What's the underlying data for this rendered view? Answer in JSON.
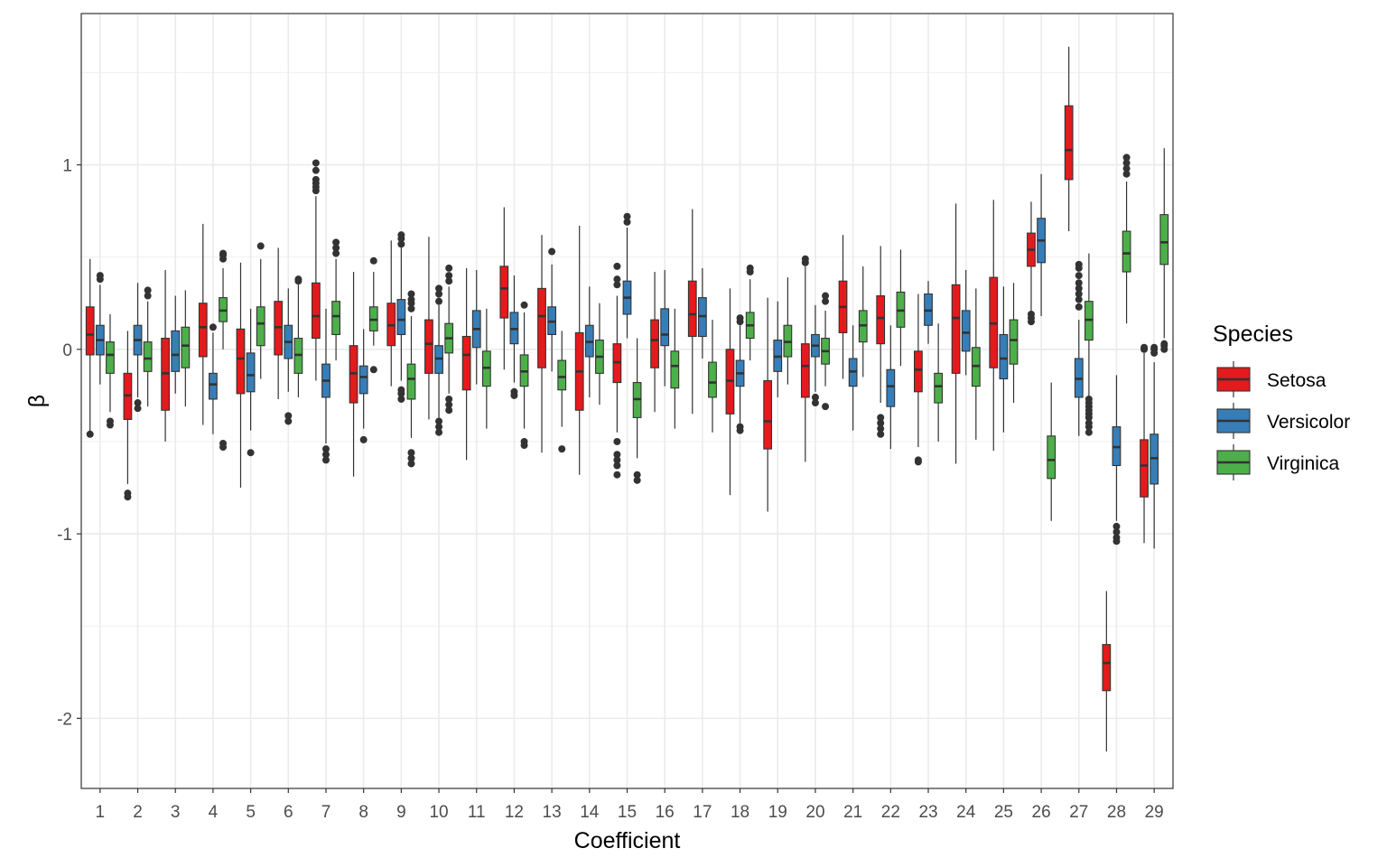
{
  "chart_data": {
    "type": "boxplot",
    "xlabel": "Coefficient",
    "ylabel": "β",
    "ylim": [
      -2.38,
      1.82
    ],
    "yticks": [
      -2,
      -1,
      0,
      1
    ],
    "categories": [
      "1",
      "2",
      "3",
      "4",
      "5",
      "6",
      "7",
      "8",
      "9",
      "10",
      "11",
      "12",
      "13",
      "14",
      "15",
      "16",
      "17",
      "18",
      "19",
      "20",
      "21",
      "22",
      "23",
      "24",
      "25",
      "26",
      "27",
      "28",
      "29"
    ],
    "grid": true,
    "legend": {
      "title": "Species",
      "position": "right",
      "entries": [
        "Setosa",
        "Versicolor",
        "Virginica"
      ]
    },
    "colors": {
      "Setosa": "#e41a1c",
      "Versicolor": "#377eb8",
      "Virginica": "#4daf4a"
    },
    "series": [
      {
        "name": "Setosa",
        "boxes": [
          {
            "wlo": -0.46,
            "q1": -0.03,
            "med": 0.08,
            "q3": 0.23,
            "whi": 0.49,
            "out": [
              -0.46
            ]
          },
          {
            "wlo": -0.73,
            "q1": -0.38,
            "med": -0.25,
            "q3": -0.13,
            "whi": 0.1,
            "out": [
              -0.78,
              -0.8
            ]
          },
          {
            "wlo": -0.5,
            "q1": -0.33,
            "med": -0.13,
            "q3": 0.06,
            "whi": 0.43,
            "out": []
          },
          {
            "wlo": -0.41,
            "q1": -0.04,
            "med": 0.12,
            "q3": 0.25,
            "whi": 0.68,
            "out": []
          },
          {
            "wlo": -0.75,
            "q1": -0.24,
            "med": -0.05,
            "q3": 0.11,
            "whi": 0.47,
            "out": []
          },
          {
            "wlo": -0.27,
            "q1": -0.03,
            "med": 0.12,
            "q3": 0.26,
            "whi": 0.55,
            "out": []
          },
          {
            "wlo": -0.17,
            "q1": 0.06,
            "med": 0.18,
            "q3": 0.36,
            "whi": 0.83,
            "out": [
              0.86,
              0.88,
              0.9,
              0.92,
              0.97,
              1.01
            ]
          },
          {
            "wlo": -0.69,
            "q1": -0.29,
            "med": -0.13,
            "q3": 0.02,
            "whi": 0.42,
            "out": []
          },
          {
            "wlo": -0.2,
            "q1": 0.02,
            "med": 0.13,
            "q3": 0.25,
            "whi": 0.59,
            "out": []
          },
          {
            "wlo": -0.38,
            "q1": -0.13,
            "med": 0.03,
            "q3": 0.16,
            "whi": 0.61,
            "out": []
          },
          {
            "wlo": -0.6,
            "q1": -0.22,
            "med": -0.03,
            "q3": 0.07,
            "whi": 0.44,
            "out": []
          },
          {
            "wlo": -0.11,
            "q1": 0.17,
            "med": 0.33,
            "q3": 0.45,
            "whi": 0.77,
            "out": []
          },
          {
            "wlo": -0.56,
            "q1": -0.1,
            "med": 0.18,
            "q3": 0.33,
            "whi": 0.62,
            "out": []
          },
          {
            "wlo": -0.68,
            "q1": -0.33,
            "med": -0.12,
            "q3": 0.09,
            "whi": 0.67,
            "out": []
          },
          {
            "wlo": -0.45,
            "q1": -0.18,
            "med": -0.07,
            "q3": 0.03,
            "whi": 0.29,
            "out": [
              0.35,
              0.38,
              0.45,
              -0.5,
              -0.57,
              -0.6,
              -0.63,
              -0.68
            ]
          },
          {
            "wlo": -0.34,
            "q1": -0.1,
            "med": 0.05,
            "q3": 0.16,
            "whi": 0.42,
            "out": []
          },
          {
            "wlo": -0.35,
            "q1": 0.07,
            "med": 0.19,
            "q3": 0.37,
            "whi": 0.76,
            "out": []
          },
          {
            "wlo": -0.79,
            "q1": -0.35,
            "med": -0.17,
            "q3": 0.0,
            "whi": 0.33,
            "out": []
          },
          {
            "wlo": -0.88,
            "q1": -0.54,
            "med": -0.39,
            "q3": -0.17,
            "whi": 0.28,
            "out": []
          },
          {
            "wlo": -0.61,
            "q1": -0.26,
            "med": -0.09,
            "q3": 0.03,
            "whi": 0.45,
            "out": [
              0.47,
              0.49
            ]
          },
          {
            "wlo": -0.16,
            "q1": 0.09,
            "med": 0.23,
            "q3": 0.37,
            "whi": 0.62,
            "out": []
          },
          {
            "wlo": -0.29,
            "q1": 0.03,
            "med": 0.17,
            "q3": 0.29,
            "whi": 0.56,
            "out": [
              -0.37,
              -0.4,
              -0.43,
              -0.46
            ]
          },
          {
            "wlo": -0.53,
            "q1": -0.23,
            "med": -0.11,
            "q3": -0.01,
            "whi": 0.3,
            "out": [
              -0.6,
              -0.61
            ]
          },
          {
            "wlo": -0.62,
            "q1": -0.13,
            "med": 0.17,
            "q3": 0.35,
            "whi": 0.79,
            "out": []
          },
          {
            "wlo": -0.55,
            "q1": -0.1,
            "med": 0.14,
            "q3": 0.39,
            "whi": 0.81,
            "out": []
          },
          {
            "wlo": 0.2,
            "q1": 0.45,
            "med": 0.54,
            "q3": 0.63,
            "whi": 0.8,
            "out": [
              0.15,
              0.17,
              0.19
            ]
          },
          {
            "wlo": 0.64,
            "q1": 0.92,
            "med": 1.08,
            "q3": 1.32,
            "whi": 1.64,
            "out": []
          },
          {
            "wlo": -2.18,
            "q1": -1.85,
            "med": -1.7,
            "q3": -1.6,
            "whi": -1.31,
            "out": []
          },
          {
            "wlo": -1.05,
            "q1": -0.8,
            "med": -0.63,
            "q3": -0.49,
            "whi": -0.02,
            "out": [
              0.0,
              0.01
            ]
          }
        ]
      },
      {
        "name": "Versicolor",
        "boxes": [
          {
            "wlo": -0.19,
            "q1": -0.03,
            "med": 0.05,
            "q3": 0.13,
            "whi": 0.35,
            "out": [
              0.38,
              0.4
            ]
          },
          {
            "wlo": -0.26,
            "q1": -0.03,
            "med": 0.05,
            "q3": 0.13,
            "whi": 0.36,
            "out": [
              -0.29,
              -0.32
            ]
          },
          {
            "wlo": -0.24,
            "q1": -0.12,
            "med": -0.03,
            "q3": 0.1,
            "whi": 0.29,
            "out": []
          },
          {
            "wlo": -0.46,
            "q1": -0.27,
            "med": -0.19,
            "q3": -0.13,
            "whi": 0.09,
            "out": [
              0.12
            ]
          },
          {
            "wlo": -0.44,
            "q1": -0.23,
            "med": -0.14,
            "q3": -0.02,
            "whi": 0.22,
            "out": [
              -0.56
            ]
          },
          {
            "wlo": -0.23,
            "q1": -0.05,
            "med": 0.04,
            "q3": 0.13,
            "whi": 0.33,
            "out": [
              -0.36,
              -0.39
            ]
          },
          {
            "wlo": -0.51,
            "q1": -0.26,
            "med": -0.17,
            "q3": -0.08,
            "whi": 0.22,
            "out": [
              -0.54,
              -0.57,
              -0.6
            ]
          },
          {
            "wlo": -0.43,
            "q1": -0.24,
            "med": -0.15,
            "q3": -0.09,
            "whi": 0.11,
            "out": [
              -0.49
            ]
          },
          {
            "wlo": -0.17,
            "q1": 0.08,
            "med": 0.16,
            "q3": 0.27,
            "whi": 0.55,
            "out": [
              0.57,
              0.6,
              0.62,
              -0.22,
              -0.24,
              -0.27
            ]
          },
          {
            "wlo": -0.37,
            "q1": -0.13,
            "med": -0.05,
            "q3": 0.02,
            "whi": 0.24,
            "out": [
              0.26,
              0.3,
              0.33,
              -0.39,
              -0.42,
              -0.45
            ]
          },
          {
            "wlo": -0.19,
            "q1": 0.01,
            "med": 0.11,
            "q3": 0.21,
            "whi": 0.43,
            "out": []
          },
          {
            "wlo": -0.18,
            "q1": 0.03,
            "med": 0.11,
            "q3": 0.2,
            "whi": 0.4,
            "out": [
              -0.23,
              -0.25
            ]
          },
          {
            "wlo": -0.12,
            "q1": 0.08,
            "med": 0.15,
            "q3": 0.23,
            "whi": 0.46,
            "out": [
              0.53
            ]
          },
          {
            "wlo": -0.26,
            "q1": -0.04,
            "med": 0.04,
            "q3": 0.13,
            "whi": 0.34,
            "out": []
          },
          {
            "wlo": 0.06,
            "q1": 0.19,
            "med": 0.28,
            "q3": 0.37,
            "whi": 0.66,
            "out": [
              0.69,
              0.72
            ]
          },
          {
            "wlo": -0.2,
            "q1": 0.02,
            "med": 0.08,
            "q3": 0.22,
            "whi": 0.43,
            "out": []
          },
          {
            "wlo": -0.05,
            "q1": 0.07,
            "med": 0.18,
            "q3": 0.28,
            "whi": 0.44,
            "out": []
          },
          {
            "wlo": -0.4,
            "q1": -0.2,
            "med": -0.13,
            "q3": -0.06,
            "whi": 0.13,
            "out": [
              0.15,
              0.17,
              -0.42,
              -0.44
            ]
          },
          {
            "wlo": -0.26,
            "q1": -0.12,
            "med": -0.04,
            "q3": 0.05,
            "whi": 0.26,
            "out": []
          },
          {
            "wlo": -0.23,
            "q1": -0.04,
            "med": 0.02,
            "q3": 0.08,
            "whi": 0.24,
            "out": [
              -0.26,
              -0.29
            ]
          },
          {
            "wlo": -0.44,
            "q1": -0.2,
            "med": -0.12,
            "q3": -0.05,
            "whi": 0.13,
            "out": []
          },
          {
            "wlo": -0.54,
            "q1": -0.31,
            "med": -0.2,
            "q3": -0.11,
            "whi": 0.13,
            "out": []
          },
          {
            "wlo": 0.03,
            "q1": 0.13,
            "med": 0.21,
            "q3": 0.3,
            "whi": 0.37,
            "out": []
          },
          {
            "wlo": -0.14,
            "q1": -0.01,
            "med": 0.09,
            "q3": 0.21,
            "whi": 0.43,
            "out": []
          },
          {
            "wlo": -0.45,
            "q1": -0.16,
            "med": -0.05,
            "q3": 0.08,
            "whi": 0.34,
            "out": []
          },
          {
            "wlo": 0.18,
            "q1": 0.47,
            "med": 0.59,
            "q3": 0.71,
            "whi": 0.95,
            "out": []
          },
          {
            "wlo": -0.47,
            "q1": -0.26,
            "med": -0.16,
            "q3": -0.05,
            "whi": 0.16,
            "out": [
              0.23,
              0.27,
              0.3,
              0.33,
              0.36,
              0.4,
              0.44,
              0.46
            ]
          },
          {
            "wlo": -0.93,
            "q1": -0.63,
            "med": -0.53,
            "q3": -0.42,
            "whi": -0.14,
            "out": [
              -0.96,
              -0.99,
              -1.02,
              -1.04
            ]
          },
          {
            "wlo": -1.08,
            "q1": -0.73,
            "med": -0.59,
            "q3": -0.46,
            "whi": -0.07,
            "out": [
              -0.02,
              0.0,
              0.01
            ]
          }
        ]
      },
      {
        "name": "Virginica",
        "boxes": [
          {
            "wlo": -0.34,
            "q1": -0.13,
            "med": -0.03,
            "q3": 0.04,
            "whi": 0.19,
            "out": [
              -0.39,
              -0.41
            ]
          },
          {
            "wlo": -0.31,
            "q1": -0.12,
            "med": -0.05,
            "q3": 0.04,
            "whi": 0.26,
            "out": [
              0.29,
              0.32
            ]
          },
          {
            "wlo": -0.31,
            "q1": -0.1,
            "med": 0.02,
            "q3": 0.12,
            "whi": 0.32,
            "out": []
          },
          {
            "wlo": 0.0,
            "q1": 0.15,
            "med": 0.21,
            "q3": 0.28,
            "whi": 0.44,
            "out": [
              0.49,
              0.51,
              0.52,
              -0.51,
              -0.53
            ]
          },
          {
            "wlo": -0.16,
            "q1": 0.02,
            "med": 0.14,
            "q3": 0.23,
            "whi": 0.49,
            "out": [
              0.56
            ]
          },
          {
            "wlo": -0.26,
            "q1": -0.13,
            "med": -0.03,
            "q3": 0.06,
            "whi": 0.35,
            "out": [
              0.37,
              0.38
            ]
          },
          {
            "wlo": -0.06,
            "q1": 0.08,
            "med": 0.18,
            "q3": 0.26,
            "whi": 0.49,
            "out": [
              0.52,
              0.55,
              0.58
            ]
          },
          {
            "wlo": 0.02,
            "q1": 0.1,
            "med": 0.16,
            "q3": 0.23,
            "whi": 0.42,
            "out": [
              0.48,
              -0.11
            ]
          },
          {
            "wlo": -0.48,
            "q1": -0.27,
            "med": -0.16,
            "q3": -0.08,
            "whi": 0.18,
            "out": [
              0.22,
              0.25,
              0.27,
              0.3,
              -0.56,
              -0.59,
              -0.62
            ]
          },
          {
            "wlo": -0.24,
            "q1": -0.02,
            "med": 0.06,
            "q3": 0.14,
            "whi": 0.34,
            "out": [
              0.37,
              0.4,
              0.44,
              -0.27,
              -0.3,
              -0.33
            ]
          },
          {
            "wlo": -0.43,
            "q1": -0.2,
            "med": -0.1,
            "q3": -0.01,
            "whi": 0.22,
            "out": []
          },
          {
            "wlo": -0.43,
            "q1": -0.2,
            "med": -0.12,
            "q3": -0.03,
            "whi": 0.2,
            "out": [
              0.24,
              -0.5,
              -0.52
            ]
          },
          {
            "wlo": -0.42,
            "q1": -0.22,
            "med": -0.15,
            "q3": -0.06,
            "whi": 0.1,
            "out": [
              -0.54
            ]
          },
          {
            "wlo": -0.3,
            "q1": -0.13,
            "med": -0.04,
            "q3": 0.05,
            "whi": 0.25,
            "out": []
          },
          {
            "wlo": -0.59,
            "q1": -0.37,
            "med": -0.27,
            "q3": -0.18,
            "whi": 0.06,
            "out": [
              -0.68,
              -0.71
            ]
          },
          {
            "wlo": -0.43,
            "q1": -0.21,
            "med": -0.09,
            "q3": -0.01,
            "whi": 0.22,
            "out": []
          },
          {
            "wlo": -0.45,
            "q1": -0.26,
            "med": -0.18,
            "q3": -0.07,
            "whi": 0.16,
            "out": []
          },
          {
            "wlo": -0.06,
            "q1": 0.06,
            "med": 0.13,
            "q3": 0.2,
            "whi": 0.38,
            "out": [
              0.42,
              0.44
            ]
          },
          {
            "wlo": -0.19,
            "q1": -0.04,
            "med": 0.04,
            "q3": 0.13,
            "whi": 0.39,
            "out": []
          },
          {
            "wlo": -0.2,
            "q1": -0.08,
            "med": -0.01,
            "q3": 0.06,
            "whi": 0.21,
            "out": [
              0.26,
              0.29,
              -0.31
            ]
          },
          {
            "wlo": -0.15,
            "q1": 0.04,
            "med": 0.13,
            "q3": 0.21,
            "whi": 0.45,
            "out": []
          },
          {
            "wlo": -0.09,
            "q1": 0.12,
            "med": 0.21,
            "q3": 0.31,
            "whi": 0.54,
            "out": []
          },
          {
            "wlo": -0.5,
            "q1": -0.29,
            "med": -0.2,
            "q3": -0.13,
            "whi": 0.14,
            "out": []
          },
          {
            "wlo": -0.49,
            "q1": -0.2,
            "med": -0.09,
            "q3": 0.01,
            "whi": 0.33,
            "out": []
          },
          {
            "wlo": -0.29,
            "q1": -0.08,
            "med": 0.05,
            "q3": 0.16,
            "whi": 0.36,
            "out": []
          },
          {
            "wlo": -0.93,
            "q1": -0.7,
            "med": -0.6,
            "q3": -0.47,
            "whi": -0.18,
            "out": []
          },
          {
            "wlo": -0.26,
            "q1": 0.05,
            "med": 0.16,
            "q3": 0.26,
            "whi": 0.52,
            "out": [
              -0.27,
              -0.29,
              -0.31,
              -0.33,
              -0.35,
              -0.37,
              -0.4,
              -0.42,
              -0.45
            ]
          },
          {
            "wlo": 0.14,
            "q1": 0.42,
            "med": 0.52,
            "q3": 0.64,
            "whi": 0.91,
            "out": [
              0.95,
              0.98,
              1.01,
              1.04
            ]
          },
          {
            "wlo": 0.06,
            "q1": 0.46,
            "med": 0.58,
            "q3": 0.73,
            "whi": 1.09,
            "out": [
              0.0,
              0.02,
              0.03
            ]
          }
        ]
      }
    ]
  }
}
